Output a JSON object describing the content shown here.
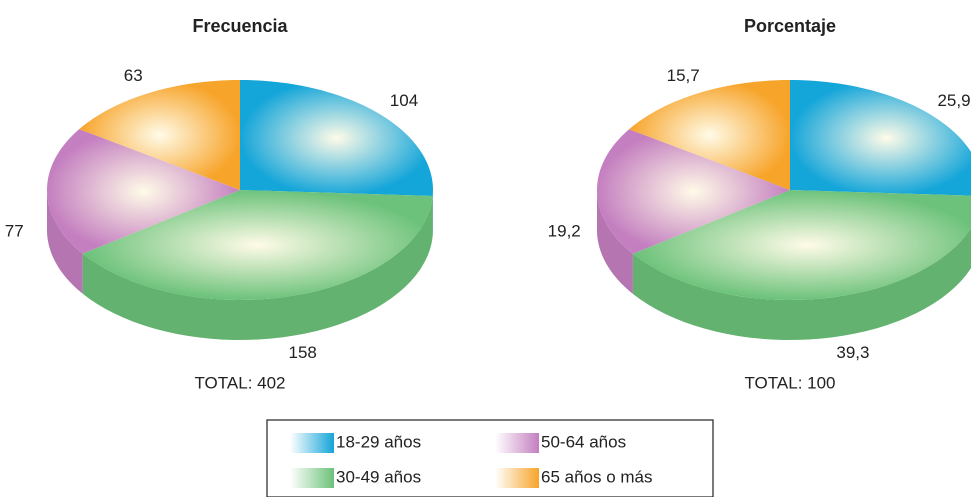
{
  "chart_data": [
    {
      "type": "pie",
      "title": "Frecuencia",
      "categories": [
        "18-29 años",
        "30-49 años",
        "50-64 años",
        "65 años o más"
      ],
      "colors": [
        "#14a5d9",
        "#6cc27a",
        "#c47fc0",
        "#f7a42a"
      ],
      "values": [
        104,
        158,
        77,
        63
      ],
      "total": "TOTAL: 402"
    },
    {
      "type": "pie",
      "title": "Porcentaje",
      "values": [
        25.9,
        39.3,
        19.2,
        15.7
      ],
      "value_labels": [
        "25,9",
        "39,3",
        "19,2",
        "15,7"
      ],
      "total": "TOTAL: 100"
    }
  ]
}
